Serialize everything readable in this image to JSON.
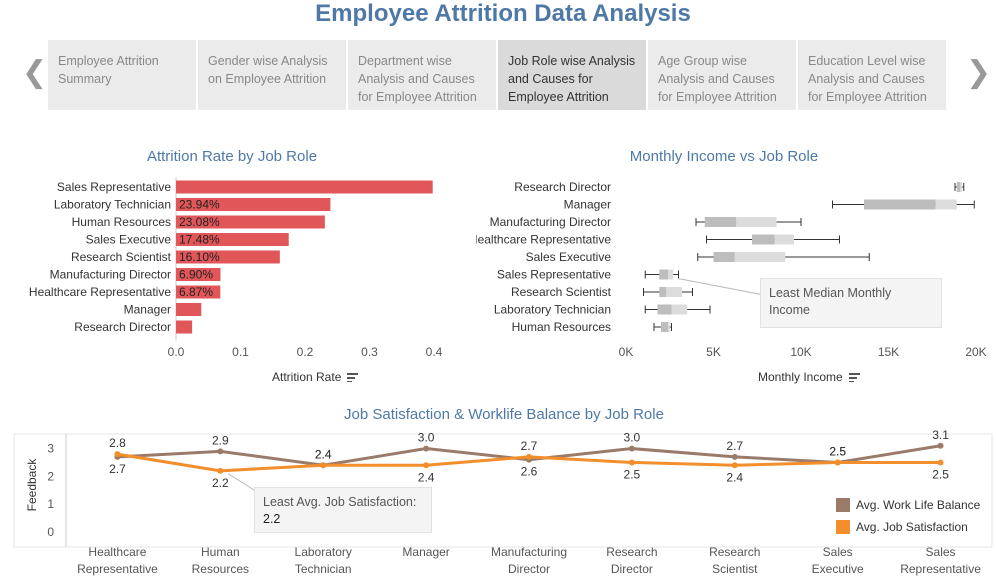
{
  "page": {
    "title": "Employee Attrition Data Analysis"
  },
  "tabs": [
    {
      "label": "Employee Attrition Summary",
      "active": false
    },
    {
      "label": "Gender wise Analysis on Employee Attrition",
      "active": false
    },
    {
      "label": "Department wise Analysis and Causes for Employee Attrition",
      "active": false
    },
    {
      "label": "Job Role wise Analysis and Causes for Employee Attrition",
      "active": true
    },
    {
      "label": "Age Group wise Analysis and Causes for Employee Attrition",
      "active": false
    },
    {
      "label": "Education Level wise Analysis and Causes for Employee Attrition",
      "active": false
    }
  ],
  "nav": {
    "prev_icon": "chevron-left-icon",
    "next_icon": "chevron-right-icon"
  },
  "colors": {
    "bar": "#e15759",
    "title": "#4e79a7",
    "work_life": "#9a7b6a",
    "job_sat": "#f28e2b",
    "box": "#c8c8c8"
  },
  "chart_data": [
    {
      "type": "bar",
      "title": "Attrition Rate by Job Role",
      "xlabel": "Attrition Rate",
      "orientation": "horizontal",
      "categories": [
        "Sales Representative",
        "Laboratory Technician",
        "Human Resources",
        "Sales Executive",
        "Research Scientist",
        "Manufacturing Director",
        "Healthcare Representative",
        "Manager",
        "Research Director"
      ],
      "values": [
        0.398,
        0.2394,
        0.2308,
        0.1748,
        0.161,
        0.069,
        0.0687,
        0.0392,
        0.025
      ],
      "data_labels": [
        "",
        "23.94%",
        "23.08%",
        "17.48%",
        "16.10%",
        "6.90%",
        "6.87%",
        "",
        ""
      ],
      "xticks": [
        "0.0",
        "0.1",
        "0.2",
        "0.3",
        "0.4"
      ],
      "xlim": [
        0,
        0.4
      ]
    },
    {
      "type": "boxplot",
      "title": "Monthly Income vs Job Role",
      "xlabel": "Monthly Income",
      "categories": [
        "Research Director",
        "Manager",
        "Manufacturing Director",
        "Healthcare Representative",
        "Sales Executive",
        "Sales Representative",
        "Research Scientist",
        "Laboratory Technician",
        "Human Resources"
      ],
      "boxes": [
        {
          "min": 18800,
          "q1": 18900,
          "median": 19100,
          "q3": 19200,
          "max": 19300
        },
        {
          "min": 11800,
          "q1": 13600,
          "median": 17700,
          "q3": 18900,
          "max": 19900
        },
        {
          "min": 4000,
          "q1": 4500,
          "median": 6300,
          "q3": 8600,
          "max": 10000
        },
        {
          "min": 4600,
          "q1": 7200,
          "median": 8500,
          "q3": 9600,
          "max": 12200
        },
        {
          "min": 4100,
          "q1": 5000,
          "median": 6200,
          "q3": 9100,
          "max": 13900
        },
        {
          "min": 1100,
          "q1": 1900,
          "median": 2400,
          "q3": 2700,
          "max": 3000
        },
        {
          "min": 1000,
          "q1": 1900,
          "median": 2300,
          "q3": 3200,
          "max": 3800
        },
        {
          "min": 1100,
          "q1": 1800,
          "median": 2600,
          "q3": 3500,
          "max": 4800
        },
        {
          "min": 1600,
          "q1": 2000,
          "median": 2400,
          "q3": 2500,
          "max": 2600
        }
      ],
      "xticks": [
        "0K",
        "5K",
        "10K",
        "15K",
        "20K"
      ],
      "xlim": [
        0,
        20000
      ]
    },
    {
      "type": "line",
      "title": "Job Satisfaction & Worklife Balance by Job Role",
      "ylabel": "Feedback",
      "categories": [
        "Healthcare Representative",
        "Human Resources",
        "Laboratory Technician",
        "Manager",
        "Manufacturing Director",
        "Research Director",
        "Research Scientist",
        "Sales Executive",
        "Sales Representative"
      ],
      "series": [
        {
          "name": "Avg. Work Life Balance",
          "values": [
            2.7,
            2.9,
            2.4,
            3.0,
            2.6,
            3.0,
            2.7,
            2.5,
            3.1
          ],
          "labels": [
            "2.7",
            "2.9",
            "2.4",
            "3.0",
            "2.6",
            "3.0",
            "2.7",
            "2.5",
            "3.1"
          ]
        },
        {
          "name": "Avg. Job Satisfaction",
          "values": [
            2.8,
            2.2,
            2.4,
            2.4,
            2.7,
            2.5,
            2.4,
            2.5,
            2.5
          ],
          "labels": [
            "2.8",
            "2.2",
            "2.4",
            "2.4",
            "2.7",
            "2.5",
            "2.4",
            "2.5",
            "2.5"
          ]
        }
      ],
      "yticks": [
        "0",
        "1",
        "2",
        "3"
      ],
      "ylim": [
        0,
        3.2
      ]
    }
  ],
  "annotations": {
    "income_note": {
      "text": "Least Median Monthly Income"
    },
    "satisfaction_note": {
      "text": "Least Avg. Job Satisfaction:",
      "value": "2.2"
    }
  }
}
